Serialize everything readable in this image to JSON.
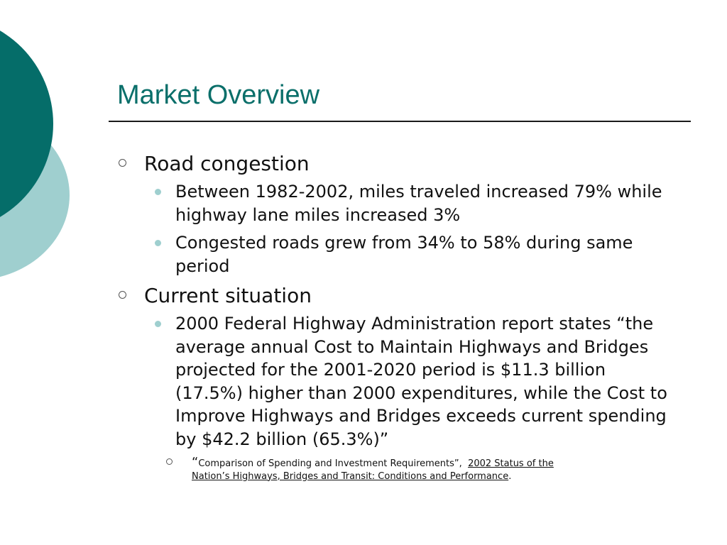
{
  "slide": {
    "title": "Market Overview",
    "sections": [
      {
        "heading": "Road congestion",
        "bullets": [
          "Between 1982-2002, miles traveled increased 79% while highway lane miles increased 3%",
          "Congested roads grew from 34% to 58% during same period"
        ]
      },
      {
        "heading": "Current situation",
        "bullets": [
          "2000 Federal Highway Administration report states “the average annual Cost to Maintain Highways and Bridges projected for the 2001-2020 period is $11.3 billion (17.5%) higher than 2000 expenditures, while the Cost to Improve Highways and Bridges exceeds current spending by $42.2 billion (65.3%)”"
        ]
      }
    ],
    "citation": {
      "open_quote": "“",
      "text": "Comparison of Spending and Investment Requirements”,",
      "source": "2002 Status of the Nation’s Highways, Bridges and Transit: Conditions and Performance",
      "end": "."
    }
  },
  "colors": {
    "title": "#0a6f6a",
    "dark_circle": "#056d69",
    "light_circle": "#9fcfcf"
  }
}
